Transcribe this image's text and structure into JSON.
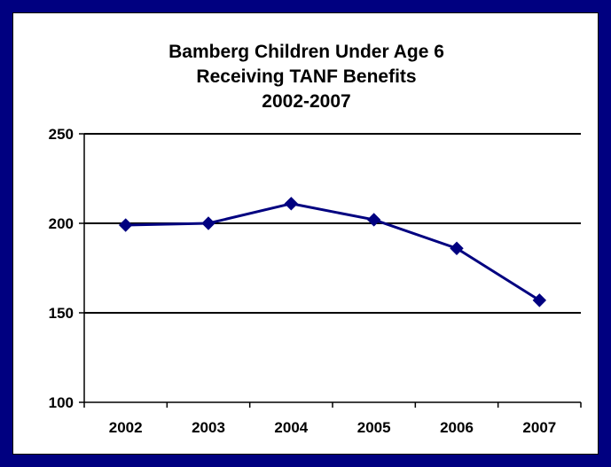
{
  "chart_data": {
    "type": "line",
    "title_lines": [
      "Bamberg Children Under Age 6",
      "Receiving TANF Benefits",
      "2002-2007"
    ],
    "categories": [
      "2002",
      "2003",
      "2004",
      "2005",
      "2006",
      "2007"
    ],
    "series": [
      {
        "values": [
          199,
          200,
          211,
          202,
          186,
          157
        ],
        "color": "#000080"
      }
    ],
    "ylim": [
      100,
      250
    ],
    "yticks": [
      100,
      150,
      200,
      250
    ],
    "ytick_labels": [
      "100",
      "150",
      "200",
      "250"
    ],
    "grid": true,
    "legend": "none",
    "xlabel": "",
    "ylabel": ""
  },
  "colors": {
    "frame": "#000080",
    "line": "#000080",
    "gridline": "#000000"
  }
}
